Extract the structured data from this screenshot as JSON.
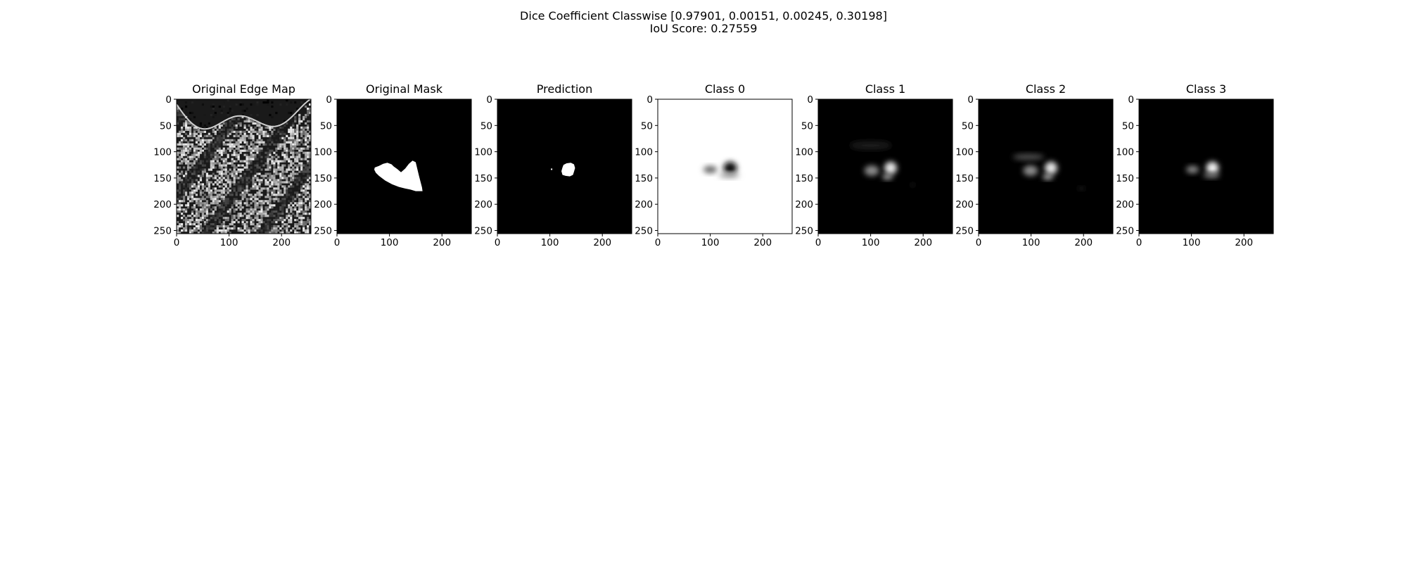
{
  "figure": {
    "suptitle_line1": "Dice Coefficient Classwise [0.97901, 0.00151, 0.00245, 0.30198]",
    "suptitle_line2": "IoU Score: 0.27559"
  },
  "chart_data": {
    "type": "heatmap",
    "colormap": "gray",
    "image_size": [
      256,
      256
    ],
    "x_ticks": [
      "0",
      "100",
      "200"
    ],
    "y_ticks": [
      "0",
      "50",
      "100",
      "150",
      "200",
      "250"
    ],
    "panels": [
      {
        "title": "Original Edge Map",
        "content": "edge",
        "x_tick_values": [
          0,
          100,
          200
        ],
        "y_tick_values": [
          0,
          50,
          100,
          150,
          200,
          250
        ],
        "xlim": [
          0,
          256
        ],
        "ylim": [
          256,
          0
        ]
      },
      {
        "title": "Original Mask",
        "content": "mask",
        "mask_outline": [
          [
            72,
            130
          ],
          [
            80,
            127
          ],
          [
            88,
            123
          ],
          [
            96,
            121
          ],
          [
            104,
            124
          ],
          [
            108,
            128
          ],
          [
            115,
            133
          ],
          [
            122,
            139
          ],
          [
            130,
            132
          ],
          [
            137,
            123
          ],
          [
            144,
            117
          ],
          [
            150,
            120
          ],
          [
            156,
            145
          ],
          [
            162,
            168
          ],
          [
            163,
            175
          ],
          [
            150,
            175
          ],
          [
            140,
            172
          ],
          [
            130,
            170
          ],
          [
            118,
            167
          ],
          [
            105,
            162
          ],
          [
            92,
            155
          ],
          [
            80,
            146
          ],
          [
            74,
            140
          ],
          [
            71,
            134
          ]
        ],
        "x_tick_values": [
          0,
          100,
          200
        ],
        "y_tick_values": [
          0,
          50,
          100,
          150,
          200,
          250
        ],
        "xlim": [
          0,
          256
        ],
        "ylim": [
          256,
          0
        ]
      },
      {
        "title": "Prediction",
        "content": "prediction",
        "mask_outline": [
          [
            126,
            125
          ],
          [
            132,
            122
          ],
          [
            140,
            121
          ],
          [
            146,
            124
          ],
          [
            148,
            131
          ],
          [
            146,
            138
          ],
          [
            144,
            144
          ],
          [
            138,
            147
          ],
          [
            130,
            146
          ],
          [
            124,
            144
          ],
          [
            122,
            137
          ],
          [
            124,
            130
          ]
        ],
        "speck": [
          102,
          132
        ],
        "x_tick_values": [
          0,
          100,
          200
        ],
        "y_tick_values": [
          0,
          50,
          100,
          150,
          200,
          250
        ],
        "xlim": [
          0,
          256
        ],
        "ylim": [
          256,
          0
        ]
      },
      {
        "title": "Class 0",
        "content": "class0",
        "blobs": [
          {
            "cx": 138,
            "cy": 131,
            "rx": 13,
            "ry": 12,
            "value": 0.95
          },
          {
            "cx": 100,
            "cy": 134,
            "rx": 13,
            "ry": 7,
            "value": 0.6
          },
          {
            "cx": 136,
            "cy": 145,
            "rx": 20,
            "ry": 5,
            "value": 0.35
          }
        ],
        "x_tick_values": [
          0,
          100,
          200
        ],
        "y_tick_values": [
          0,
          50,
          100,
          150,
          200,
          250
        ],
        "xlim": [
          0,
          256
        ],
        "ylim": [
          256,
          0
        ]
      },
      {
        "title": "Class 1",
        "content": "class1",
        "blobs": [
          {
            "cx": 138,
            "cy": 131,
            "rx": 12,
            "ry": 12,
            "value": 0.9
          },
          {
            "cx": 102,
            "cy": 136,
            "rx": 14,
            "ry": 10,
            "value": 0.55
          },
          {
            "cx": 132,
            "cy": 148,
            "rx": 10,
            "ry": 5,
            "value": 0.7
          },
          {
            "cx": 100,
            "cy": 88,
            "rx": 40,
            "ry": 8,
            "value": 0.1
          },
          {
            "cx": 180,
            "cy": 163,
            "rx": 4,
            "ry": 3,
            "value": 0.15
          }
        ],
        "x_tick_values": [
          0,
          100,
          200
        ],
        "y_tick_values": [
          0,
          50,
          100,
          150,
          200,
          250
        ],
        "xlim": [
          0,
          256
        ],
        "ylim": [
          256,
          0
        ]
      },
      {
        "title": "Class 2",
        "content": "class2",
        "blobs": [
          {
            "cx": 138,
            "cy": 131,
            "rx": 12,
            "ry": 12,
            "value": 0.9
          },
          {
            "cx": 99,
            "cy": 136,
            "rx": 14,
            "ry": 10,
            "value": 0.55
          },
          {
            "cx": 132,
            "cy": 148,
            "rx": 10,
            "ry": 5,
            "value": 0.75
          },
          {
            "cx": 95,
            "cy": 110,
            "rx": 30,
            "ry": 6,
            "value": 0.3
          },
          {
            "cx": 196,
            "cy": 170,
            "rx": 5,
            "ry": 3,
            "value": 0.2
          }
        ],
        "x_tick_values": [
          0,
          100,
          200
        ],
        "y_tick_values": [
          0,
          50,
          100,
          150,
          200,
          250
        ],
        "xlim": [
          0,
          256
        ],
        "ylim": [
          256,
          0
        ]
      },
      {
        "title": "Class 3",
        "content": "class3",
        "blobs": [
          {
            "cx": 140,
            "cy": 131,
            "rx": 12,
            "ry": 12,
            "value": 0.95
          },
          {
            "cx": 102,
            "cy": 134,
            "rx": 12,
            "ry": 7,
            "value": 0.55
          },
          {
            "cx": 138,
            "cy": 145,
            "rx": 16,
            "ry": 5,
            "value": 0.45
          }
        ],
        "x_tick_values": [
          0,
          100,
          200
        ],
        "y_tick_values": [
          0,
          50,
          100,
          150,
          200,
          250
        ],
        "xlim": [
          0,
          256
        ],
        "ylim": [
          256,
          0
        ]
      }
    ]
  }
}
